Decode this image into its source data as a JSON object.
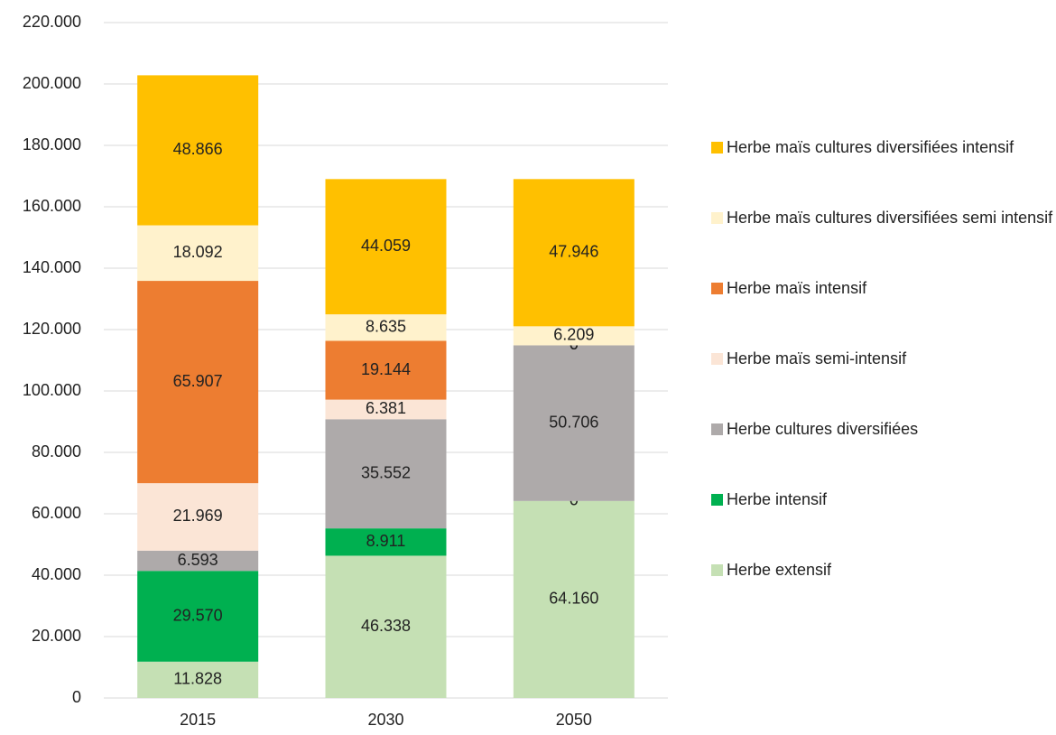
{
  "chart_data": {
    "type": "stacked_bar",
    "categories": [
      "2015",
      "2030",
      "2050"
    ],
    "series": [
      {
        "name": "Herbe extensif",
        "color": "#c5e0b4",
        "values": [
          11828,
          46338,
          64160
        ],
        "value_labels": [
          "11.828",
          "46.338",
          "64.160"
        ]
      },
      {
        "name": "Herbe intensif",
        "color": "#00b050",
        "values": [
          29570,
          8911,
          0
        ],
        "value_labels": [
          "29.570",
          "8.911",
          "0"
        ]
      },
      {
        "name": "Herbe cultures diversifiées",
        "color": "#aeaaaa",
        "values": [
          6593,
          35552,
          50706
        ],
        "value_labels": [
          "6.593",
          "35.552",
          "50.706"
        ]
      },
      {
        "name": "Herbe maïs semi-intensif",
        "color": "#fbe5d6",
        "values": [
          21969,
          6381,
          0
        ],
        "value_labels": [
          "21.969",
          "6.381",
          "0"
        ]
      },
      {
        "name": "Herbe maïs intensif",
        "color": "#ed7d31",
        "values": [
          65907,
          19144,
          0
        ],
        "value_labels": [
          "65.907",
          "19.144",
          "0"
        ]
      },
      {
        "name": "Herbe maïs cultures diversifiées semi intensif",
        "color": "#fff2cc",
        "values": [
          18092,
          8635,
          6209
        ],
        "value_labels": [
          "18.092",
          "8.635",
          "6.209"
        ]
      },
      {
        "name": "Herbe maïs cultures diversifiées intensif",
        "color": "#ffc000",
        "values": [
          48866,
          44059,
          47946
        ],
        "value_labels": [
          "48.866",
          "44.059",
          "47.946"
        ]
      }
    ],
    "ylim": [
      0,
      220000
    ],
    "yticks": [
      0,
      {
        "value": 20000,
        "label": "20.000"
      },
      {
        "value": 40000,
        "label": "40.000"
      },
      {
        "value": 60000,
        "label": "60.000"
      },
      {
        "value": 80000,
        "label": "80.000"
      },
      {
        "value": 100000,
        "label": "100.000"
      },
      {
        "value": 120000,
        "label": "120.000"
      },
      {
        "value": 140000,
        "label": "140.000"
      },
      {
        "value": 160000,
        "label": "160.000"
      },
      {
        "value": 180000,
        "label": "180.000"
      },
      {
        "value": 200000,
        "label": "200.000"
      },
      {
        "value": 220000,
        "label": "220.000"
      }
    ],
    "grid": true,
    "legend": "right"
  }
}
